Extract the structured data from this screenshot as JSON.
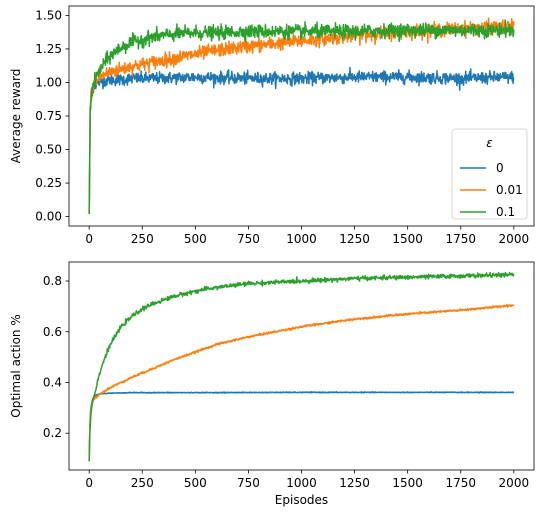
{
  "chart_data": [
    {
      "type": "line",
      "title": "",
      "xlabel": "",
      "ylabel": "Average reward",
      "xlim": [
        -95,
        2095
      ],
      "ylim": [
        -0.07,
        1.57
      ],
      "xticks": [
        0,
        250,
        500,
        750,
        1000,
        1250,
        1500,
        1750,
        2000
      ],
      "xtick_labels": [
        "0",
        "250",
        "500",
        "750",
        "1000",
        "1250",
        "1500",
        "1750",
        "2000"
      ],
      "yticks": [
        0.0,
        0.25,
        0.5,
        0.75,
        1.0,
        1.25,
        1.5
      ],
      "ytick_labels": [
        "0.00",
        "0.25",
        "0.50",
        "0.75",
        "1.00",
        "1.25",
        "1.50"
      ],
      "grid": false,
      "legend": {
        "title": "ε",
        "placement": "bottom-right"
      },
      "series": [
        {
          "name": "0",
          "color": "#1f77b4",
          "x": [
            0,
            5,
            10,
            20,
            40,
            60,
            100,
            150,
            200,
            300,
            500,
            750,
            1000,
            1250,
            1500,
            1750,
            2000
          ],
          "values": [
            0.02,
            0.8,
            0.92,
            0.97,
            1.0,
            1.01,
            1.02,
            1.02,
            1.03,
            1.03,
            1.04,
            1.03,
            1.03,
            1.04,
            1.04,
            1.03,
            1.04
          ]
        },
        {
          "name": "0.01",
          "color": "#ff7f0e",
          "x": [
            0,
            5,
            10,
            20,
            40,
            60,
            100,
            150,
            200,
            300,
            400,
            500,
            600,
            750,
            1000,
            1250,
            1500,
            1750,
            2000
          ],
          "values": [
            0.02,
            0.8,
            0.93,
            0.98,
            1.02,
            1.05,
            1.08,
            1.1,
            1.12,
            1.15,
            1.18,
            1.21,
            1.24,
            1.27,
            1.31,
            1.35,
            1.38,
            1.4,
            1.42
          ]
        },
        {
          "name": "0.1",
          "color": "#2ca02c",
          "x": [
            0,
            5,
            10,
            20,
            40,
            60,
            100,
            150,
            200,
            250,
            300,
            400,
            500,
            600,
            750,
            1000,
            1250,
            1500,
            1750,
            2000
          ],
          "values": [
            0.02,
            0.8,
            0.9,
            0.98,
            1.06,
            1.12,
            1.2,
            1.26,
            1.3,
            1.32,
            1.34,
            1.36,
            1.37,
            1.37,
            1.38,
            1.38,
            1.38,
            1.39,
            1.39,
            1.39
          ]
        }
      ]
    },
    {
      "type": "line",
      "title": "",
      "xlabel": "Episodes",
      "ylabel": "Optimal action %",
      "xlim": [
        -95,
        2095
      ],
      "ylim": [
        0.055,
        0.875
      ],
      "xticks": [
        0,
        250,
        500,
        750,
        1000,
        1250,
        1500,
        1750,
        2000
      ],
      "xtick_labels": [
        "0",
        "250",
        "500",
        "750",
        "1000",
        "1250",
        "1500",
        "1750",
        "2000"
      ],
      "yticks": [
        0.2,
        0.4,
        0.6,
        0.8
      ],
      "ytick_labels": [
        "0.2",
        "0.4",
        "0.6",
        "0.8"
      ],
      "grid": false,
      "series": [
        {
          "name": "0",
          "color": "#1f77b4",
          "x": [
            0,
            3,
            6,
            10,
            15,
            20,
            30,
            50,
            100,
            200,
            500,
            1000,
            2000
          ],
          "values": [
            0.09,
            0.22,
            0.28,
            0.31,
            0.33,
            0.34,
            0.35,
            0.355,
            0.358,
            0.36,
            0.36,
            0.361,
            0.361
          ]
        },
        {
          "name": "0.01",
          "color": "#ff7f0e",
          "x": [
            0,
            3,
            6,
            10,
            15,
            20,
            30,
            50,
            100,
            200,
            300,
            400,
            500,
            600,
            750,
            1000,
            1250,
            1500,
            1750,
            2000
          ],
          "values": [
            0.09,
            0.22,
            0.27,
            0.3,
            0.32,
            0.33,
            0.34,
            0.355,
            0.38,
            0.42,
            0.455,
            0.49,
            0.52,
            0.55,
            0.58,
            0.62,
            0.65,
            0.67,
            0.685,
            0.705
          ]
        },
        {
          "name": "0.1",
          "color": "#2ca02c",
          "x": [
            0,
            3,
            6,
            10,
            15,
            20,
            30,
            50,
            75,
            100,
            150,
            200,
            250,
            300,
            400,
            500,
            600,
            750,
            1000,
            1250,
            1500,
            1750,
            2000
          ],
          "values": [
            0.09,
            0.2,
            0.25,
            0.29,
            0.32,
            0.34,
            0.37,
            0.44,
            0.5,
            0.55,
            0.62,
            0.66,
            0.69,
            0.71,
            0.74,
            0.76,
            0.775,
            0.79,
            0.8,
            0.81,
            0.815,
            0.82,
            0.825
          ]
        }
      ]
    }
  ]
}
